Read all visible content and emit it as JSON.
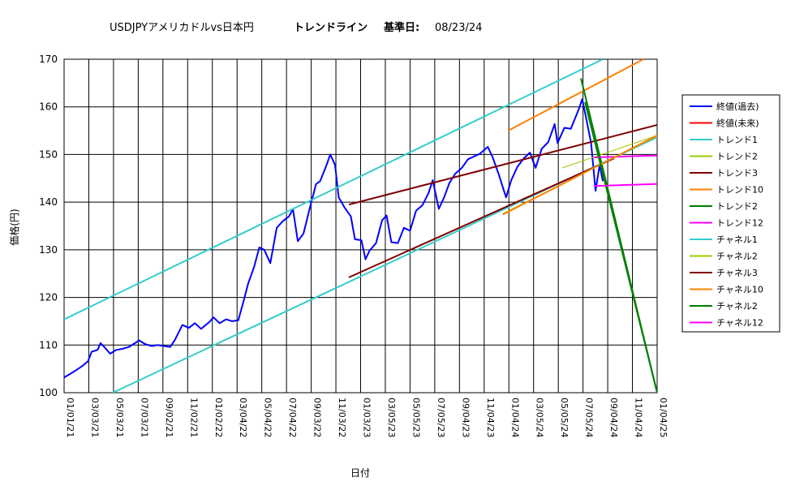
{
  "chart_data": {
    "type": "line",
    "title": {
      "main": "USDJPYアメリカドルvs日本円",
      "trend": "トレンドライン",
      "base_label": "基準日:",
      "base_date": "08/23/24"
    },
    "xlabel": "日付",
    "ylabel": "価格(円)",
    "ylim": [
      100,
      170
    ],
    "yticks": [
      "100",
      "110",
      "120",
      "130",
      "140",
      "150",
      "160",
      "170"
    ],
    "xlim": [
      "2021-01-01",
      "2025-01-04"
    ],
    "xticks": [
      "01/01/21",
      "03/03/21",
      "05/03/21",
      "07/03/21",
      "09/02/21",
      "11/02/21",
      "01/02/22",
      "03/04/22",
      "05/04/22",
      "07/04/22",
      "09/03/22",
      "11/03/22",
      "01/03/23",
      "03/05/23",
      "05/05/23",
      "07/05/23",
      "09/04/23",
      "11/04/23",
      "01/04/24",
      "03/05/24",
      "05/05/24",
      "07/05/24",
      "09/04/24",
      "11/04/24",
      "01/04/25"
    ],
    "grid": true,
    "legend_position": "right",
    "series": [
      {
        "name": "終値(過去)",
        "color": "#0000ff",
        "width": 2,
        "points": [
          [
            "2021-01-01",
            103.2
          ],
          [
            "2021-01-15",
            103.9
          ],
          [
            "2021-02-01",
            104.8
          ],
          [
            "2021-02-15",
            105.6
          ],
          [
            "2021-03-01",
            106.6
          ],
          [
            "2021-03-10",
            108.6
          ],
          [
            "2021-03-25",
            109.0
          ],
          [
            "2021-04-01",
            110.4
          ],
          [
            "2021-04-10",
            109.6
          ],
          [
            "2021-04-25",
            108.2
          ],
          [
            "2021-05-10",
            109.0
          ],
          [
            "2021-05-25",
            109.2
          ],
          [
            "2021-06-10",
            109.6
          ],
          [
            "2021-06-25",
            110.4
          ],
          [
            "2021-07-05",
            111.0
          ],
          [
            "2021-07-20",
            110.2
          ],
          [
            "2021-08-05",
            109.8
          ],
          [
            "2021-08-20",
            110.0
          ],
          [
            "2021-09-05",
            109.8
          ],
          [
            "2021-09-20",
            109.6
          ],
          [
            "2021-10-01",
            111.0
          ],
          [
            "2021-10-20",
            114.2
          ],
          [
            "2021-11-05",
            113.6
          ],
          [
            "2021-11-20",
            114.6
          ],
          [
            "2021-12-05",
            113.4
          ],
          [
            "2021-12-25",
            114.8
          ],
          [
            "2022-01-05",
            115.8
          ],
          [
            "2022-01-20",
            114.6
          ],
          [
            "2022-02-05",
            115.4
          ],
          [
            "2022-02-20",
            115.0
          ],
          [
            "2022-03-07",
            115.2
          ],
          [
            "2022-03-20",
            119.2
          ],
          [
            "2022-03-31",
            122.8
          ],
          [
            "2022-04-15",
            126.4
          ],
          [
            "2022-04-28",
            130.5
          ],
          [
            "2022-05-10",
            130.0
          ],
          [
            "2022-05-25",
            127.2
          ],
          [
            "2022-06-10",
            134.6
          ],
          [
            "2022-06-25",
            136.0
          ],
          [
            "2022-07-10",
            137.0
          ],
          [
            "2022-07-20",
            138.5
          ],
          [
            "2022-08-01",
            131.8
          ],
          [
            "2022-08-15",
            133.4
          ],
          [
            "2022-08-30",
            138.6
          ],
          [
            "2022-09-15",
            143.8
          ],
          [
            "2022-09-25",
            144.4
          ],
          [
            "2022-10-10",
            147.6
          ],
          [
            "2022-10-20",
            150.0
          ],
          [
            "2022-11-01",
            147.8
          ],
          [
            "2022-11-10",
            141.0
          ],
          [
            "2022-11-25",
            138.8
          ],
          [
            "2022-12-10",
            137.0
          ],
          [
            "2022-12-20",
            132.2
          ],
          [
            "2023-01-05",
            132.0
          ],
          [
            "2023-01-15",
            128.0
          ],
          [
            "2023-01-25",
            129.8
          ],
          [
            "2023-02-10",
            131.4
          ],
          [
            "2023-02-25",
            136.2
          ],
          [
            "2023-03-08",
            137.2
          ],
          [
            "2023-03-20",
            131.6
          ],
          [
            "2023-04-05",
            131.4
          ],
          [
            "2023-04-20",
            134.6
          ],
          [
            "2023-05-05",
            134.0
          ],
          [
            "2023-05-20",
            138.2
          ],
          [
            "2023-06-05",
            139.4
          ],
          [
            "2023-06-20",
            142.0
          ],
          [
            "2023-06-30",
            144.6
          ],
          [
            "2023-07-15",
            138.6
          ],
          [
            "2023-07-28",
            141.0
          ],
          [
            "2023-08-10",
            144.0
          ],
          [
            "2023-08-25",
            146.0
          ],
          [
            "2023-09-10",
            147.2
          ],
          [
            "2023-09-25",
            149.0
          ],
          [
            "2023-10-10",
            149.6
          ],
          [
            "2023-10-25",
            150.2
          ],
          [
            "2023-11-13",
            151.6
          ],
          [
            "2023-11-25",
            149.4
          ],
          [
            "2023-12-10",
            145.8
          ],
          [
            "2023-12-28",
            141.0
          ],
          [
            "2024-01-10",
            144.6
          ],
          [
            "2024-01-25",
            147.4
          ],
          [
            "2024-02-10",
            149.2
          ],
          [
            "2024-02-25",
            150.4
          ],
          [
            "2024-03-10",
            147.2
          ],
          [
            "2024-03-25",
            151.2
          ],
          [
            "2024-04-10",
            152.6
          ],
          [
            "2024-04-26",
            156.4
          ],
          [
            "2024-05-03",
            152.4
          ],
          [
            "2024-05-20",
            155.6
          ],
          [
            "2024-06-05",
            155.4
          ],
          [
            "2024-06-25",
            159.6
          ],
          [
            "2024-07-03",
            161.6
          ],
          [
            "2024-07-12",
            158.0
          ],
          [
            "2024-07-25",
            152.4
          ],
          [
            "2024-08-05",
            142.4
          ],
          [
            "2024-08-15",
            147.8
          ],
          [
            "2024-08-23",
            144.4
          ]
        ]
      },
      {
        "name": "終値(未来)",
        "color": "#ff0000",
        "width": 1,
        "points": []
      },
      {
        "name": "トレンド1",
        "color": "#33cccc",
        "width": 2,
        "points": [
          [
            "2021-01-01",
            115.4
          ],
          [
            "2024-08-23",
            170.0
          ]
        ]
      },
      {
        "name": "トレンド2",
        "color": "#99cc00",
        "width": 1,
        "points": [
          [
            "2024-05-15",
            147.2
          ],
          [
            "2025-01-04",
            154.0
          ]
        ]
      },
      {
        "name": "トレンド3",
        "color": "#800000",
        "width": 2,
        "points": [
          [
            "2022-12-05",
            139.5
          ],
          [
            "2025-01-04",
            156.2
          ]
        ]
      },
      {
        "name": "トレンド10",
        "color": "#ff8000",
        "width": 2,
        "points": [
          [
            "2024-01-02",
            155.0
          ],
          [
            "2024-12-01",
            170.0
          ]
        ]
      },
      {
        "name": "トレンド2",
        "color": "#008000",
        "width": 2,
        "points": [
          [
            "2024-06-30",
            166.0
          ],
          [
            "2025-01-04",
            100.0
          ]
        ]
      },
      {
        "name": "トレンド12",
        "color": "#ff00ff",
        "width": 2,
        "points": [
          [
            "2024-08-01",
            149.4
          ],
          [
            "2025-01-04",
            149.8
          ]
        ]
      },
      {
        "name": "チャネル1",
        "color": "#33cccc",
        "width": 2,
        "points": [
          [
            "2021-05-01",
            100.0
          ],
          [
            "2025-01-04",
            153.6
          ]
        ]
      },
      {
        "name": "チャネル2",
        "color": "#99cc00",
        "width": 1,
        "points": [
          [
            "2023-12-20",
            137.6
          ],
          [
            "2025-01-04",
            153.8
          ]
        ]
      },
      {
        "name": "チャネル3",
        "color": "#800000",
        "width": 2,
        "points": [
          [
            "2022-12-05",
            124.2
          ],
          [
            "2024-09-20",
            149.2
          ]
        ]
      },
      {
        "name": "チャネル10",
        "color": "#ff8000",
        "width": 2,
        "points": [
          [
            "2023-12-20",
            137.4
          ],
          [
            "2025-01-04",
            154.0
          ]
        ]
      },
      {
        "name": "チャネル2",
        "color": "#008000",
        "width": 2,
        "points": [
          [
            "2024-07-10",
            161.0
          ],
          [
            "2025-01-04",
            100.0
          ]
        ]
      },
      {
        "name": "チャネル12",
        "color": "#ff00ff",
        "width": 2,
        "points": [
          [
            "2024-08-01",
            143.4
          ],
          [
            "2025-01-04",
            143.8
          ]
        ]
      }
    ]
  }
}
